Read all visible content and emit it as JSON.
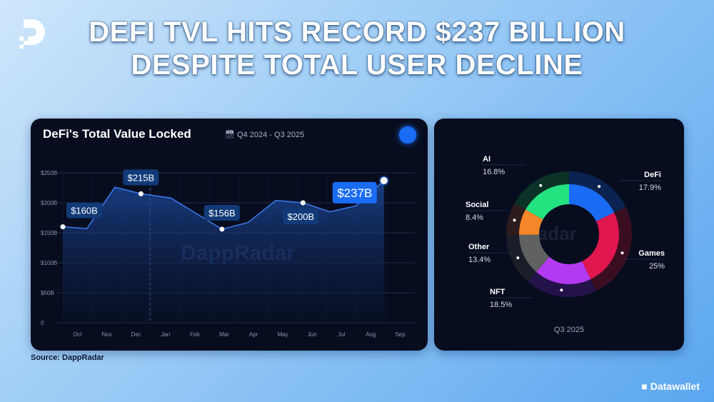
{
  "headline": [
    "DEFI TVL HITS RECORD $237 BILLION",
    "DESPITE TOTAL USER DECLINE"
  ],
  "brand": "Datawallet",
  "source": "Source: DappRadar",
  "watermark": "DappRadar",
  "colors": {
    "line": "#3b7bf0",
    "label_bg": "#123a78",
    "highlight": "#1a6cf5",
    "panel": "#070d1f"
  },
  "chart_data": [
    {
      "type": "area",
      "title": "DeFi's Total Value Locked",
      "subtitle": "Q4 2024 - Q3 2025",
      "ylim": [
        0,
        250
      ],
      "yticks": [
        {
          "v": 0,
          "label": "0"
        },
        {
          "v": 50,
          "label": "$50B"
        },
        {
          "v": 100,
          "label": "$100B"
        },
        {
          "v": 150,
          "label": "$150B"
        },
        {
          "v": 200,
          "label": "$200B"
        },
        {
          "v": 250,
          "label": "$250B"
        }
      ],
      "xticks": [
        "Oct",
        "Nov",
        "Dec",
        "Jan",
        "Feb",
        "Mar",
        "Apr",
        "May",
        "Jun",
        "Jul",
        "Aug",
        "Sep"
      ],
      "grid": true,
      "points": [
        {
          "x": "2024-10-01",
          "y": 160,
          "label": "$160B"
        },
        {
          "x": "2024-10-26",
          "y": 157
        },
        {
          "x": "2024-11-24",
          "y": 226
        },
        {
          "x": "2024-12-21",
          "y": 215,
          "label": "$215B"
        },
        {
          "x": "2025-01-21",
          "y": 208
        },
        {
          "x": "2025-03-15",
          "y": 156,
          "label": "$156B"
        },
        {
          "x": "2025-04-11",
          "y": 167
        },
        {
          "x": "2025-05-10",
          "y": 204
        },
        {
          "x": "2025-06-07",
          "y": 200,
          "label": "$200B"
        },
        {
          "x": "2025-07-05",
          "y": 185
        },
        {
          "x": "2025-08-01",
          "y": 195
        },
        {
          "x": "2025-08-30",
          "y": 237,
          "label": "$237B",
          "highlight": true
        }
      ]
    },
    {
      "type": "pie",
      "donut": true,
      "xlabel": "Q3 2025",
      "slices": [
        {
          "name": "DeFi",
          "value": 17.9,
          "label": "17.9%",
          "color": "#1a6cf5",
          "ring": "#0b2350"
        },
        {
          "name": "Games",
          "value": 25,
          "label": "25%",
          "color": "#e0164e",
          "ring": "#3a0e20"
        },
        {
          "name": "NFT",
          "value": 18.5,
          "label": "18.5%",
          "color": "#b23af0",
          "ring": "#24124a"
        },
        {
          "name": "Other",
          "value": 13.4,
          "label": "13.4%",
          "color": "#5f6260",
          "ring": "#1a1e28"
        },
        {
          "name": "Social",
          "value": 8.4,
          "label": "8.4%",
          "color": "#f5862a",
          "ring": "#2c1c1e"
        },
        {
          "name": "AI",
          "value": 16.8,
          "label": "16.8%",
          "color": "#22e37f",
          "ring": "#0c3228"
        }
      ]
    }
  ]
}
